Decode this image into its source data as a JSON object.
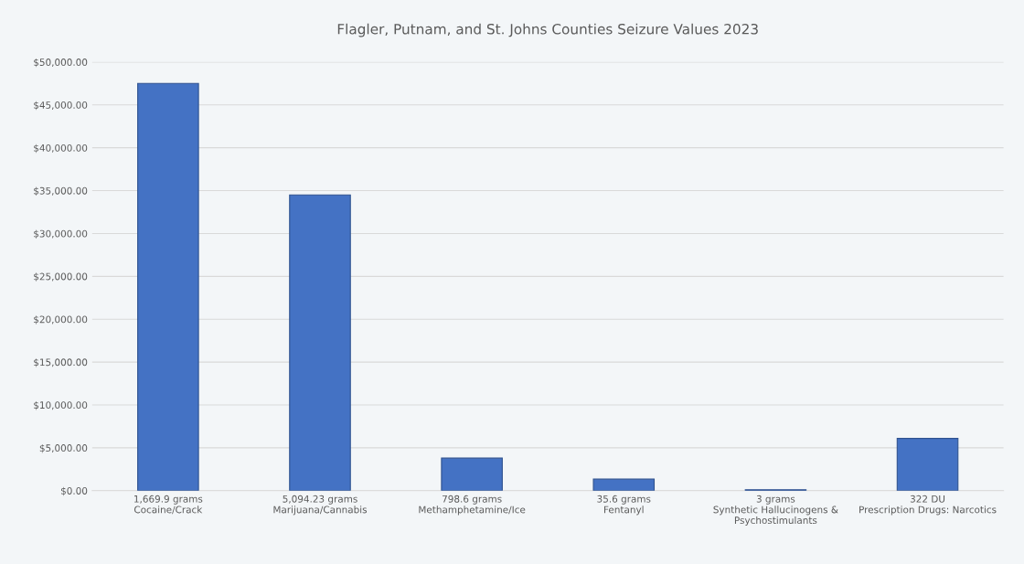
{
  "chart_data": {
    "type": "bar",
    "title": "Flagler, Putnam, and St. Johns Counties Seizure Values 2023",
    "categories": [
      "1,669.9 grams\nCocaine/Crack",
      "5,094.23 grams\nMarijuana/Cannabis",
      "798.6 grams\nMethamphetamine/Ice",
      "35.6 grams\nFentanyl",
      "3 grams\nSynthetic Hallucinogens &\nPsychostimulants",
      "322 DU\nPrescription Drugs: Narcotics"
    ],
    "values": [
      47500,
      34500,
      3800,
      1350,
      100,
      6100
    ],
    "color": "#4472c4",
    "ylim": [
      0,
      50000
    ],
    "yticks": [
      {
        "value": 0,
        "label": "$0.00"
      },
      {
        "value": 5000,
        "label": "$5,000.00"
      },
      {
        "value": 10000,
        "label": "$10,000.00"
      },
      {
        "value": 15000,
        "label": "$15,000.00"
      },
      {
        "value": 20000,
        "label": "$20,000.00"
      },
      {
        "value": 25000,
        "label": "$25,000.00"
      },
      {
        "value": 30000,
        "label": "$30,000.00"
      },
      {
        "value": 35000,
        "label": "$35,000.00"
      },
      {
        "value": 40000,
        "label": "$40,000.00"
      },
      {
        "value": 45000,
        "label": "$45,000.00"
      },
      {
        "value": 50000,
        "label": "$50,000.00"
      }
    ],
    "grid": "y"
  }
}
